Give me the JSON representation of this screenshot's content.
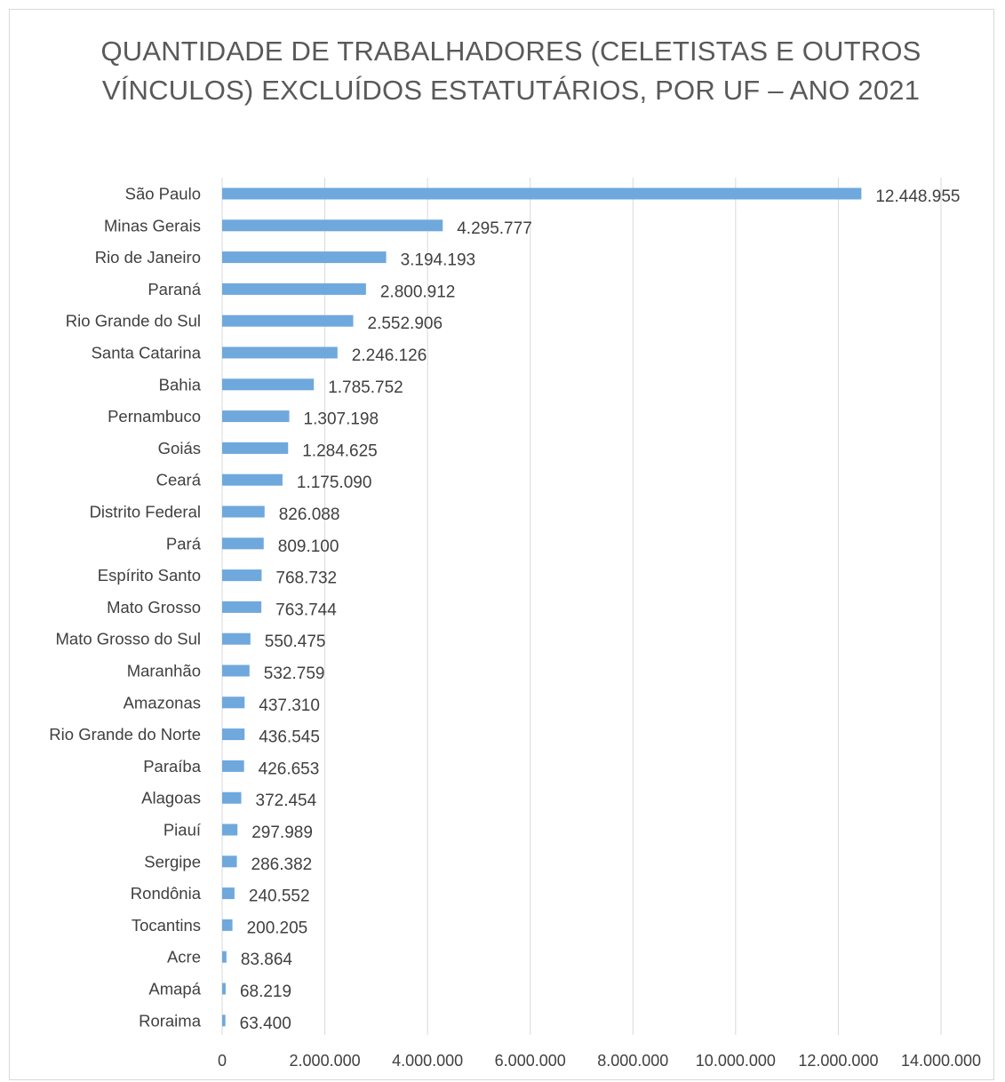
{
  "chart_data": {
    "type": "bar",
    "orientation": "horizontal",
    "title": "QUANTIDADE DE TRABALHADORES (CELETISTAS E OUTROS VÍNCULOS) EXCLUÍDOS ESTATUTÁRIOS, POR UF – ANO 2021",
    "categories": [
      "São Paulo",
      "Minas Gerais",
      "Rio de Janeiro",
      "Paraná",
      "Rio Grande do Sul",
      "Santa Catarina",
      "Bahia",
      "Pernambuco",
      "Goiás",
      "Ceará",
      "Distrito Federal",
      "Pará",
      "Espírito Santo",
      "Mato Grosso",
      "Mato Grosso do Sul",
      "Maranhão",
      "Amazonas",
      "Rio Grande do Norte",
      "Paraíba",
      "Alagoas",
      "Piauí",
      "Sergipe",
      "Rondônia",
      "Tocantins",
      "Acre",
      "Amapá",
      "Roraima"
    ],
    "values": [
      12448955,
      4295777,
      3194193,
      2800912,
      2552906,
      2246126,
      1785752,
      1307198,
      1284625,
      1175090,
      826088,
      809100,
      768732,
      763744,
      550475,
      532759,
      437310,
      436545,
      426653,
      372454,
      297989,
      286382,
      240552,
      200205,
      83864,
      68219,
      63400
    ],
    "value_labels": [
      "12.448.955",
      "4.295.777",
      "3.194.193",
      "2.800.912",
      "2.552.906",
      "2.246.126",
      "1.785.752",
      "1.307.198",
      "1.284.625",
      "1.175.090",
      "826.088",
      "809.100",
      "768.732",
      "763.744",
      "550.475",
      "532.759",
      "437.310",
      "436.545",
      "426.653",
      "372.454",
      "297.989",
      "286.382",
      "240.552",
      "200.205",
      "83.864",
      "68.219",
      "63.400"
    ],
    "xlim": [
      0,
      14000000
    ],
    "x_ticks": [
      0,
      2000000,
      4000000,
      6000000,
      8000000,
      10000000,
      12000000,
      14000000
    ],
    "x_tick_labels": [
      "0",
      "2.000.000",
      "4.000.000",
      "6.000.000",
      "8.000.000",
      "10.000.000",
      "12.000.000",
      "14.000.000"
    ],
    "grid": "vertical",
    "legend": "none",
    "bar_color": "#6fa8dc",
    "grid_color": "#d9d9d9"
  }
}
